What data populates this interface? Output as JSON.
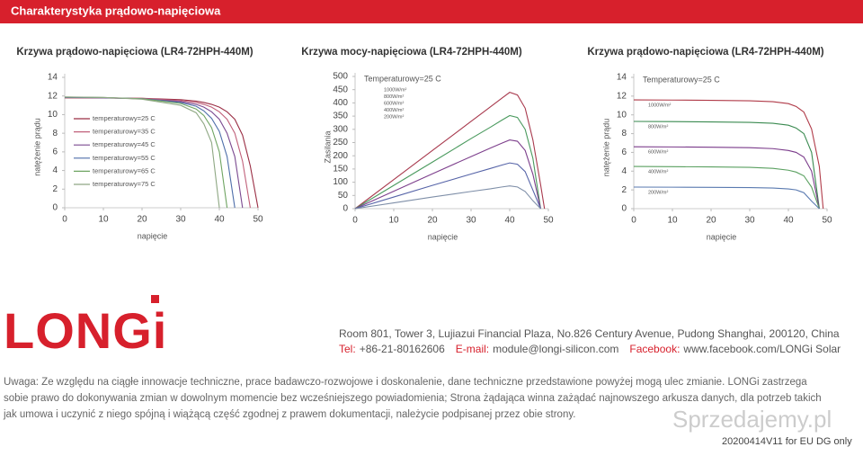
{
  "header": {
    "title": "Charakterystyka prądowo-napięciowa"
  },
  "chart_data": [
    {
      "type": "line",
      "title": "Krzywa prądowo-napięciowa (LR4-72HPH-440M)",
      "x_label": "napięcie",
      "y_label": "natężenie prądu",
      "x": [
        0,
        10,
        20,
        30,
        34,
        36,
        38,
        40,
        42,
        44,
        46,
        48,
        50
      ],
      "xlim": [
        0,
        50
      ],
      "xticks": [
        0,
        10,
        20,
        30,
        40,
        50
      ],
      "ylim": [
        0,
        14
      ],
      "yticks": [
        0,
        2,
        4,
        6,
        8,
        10,
        12,
        14
      ],
      "legend": "left",
      "series": [
        {
          "name": "temperaturowy=25 C",
          "color": "#9b2f45",
          "values": [
            11.8,
            11.78,
            11.75,
            11.6,
            11.45,
            11.3,
            11.1,
            10.8,
            10.3,
            9.5,
            7.8,
            4.5,
            0
          ]
        },
        {
          "name": "temperaturowy=35 C",
          "color": "#c0607a",
          "values": [
            11.82,
            11.8,
            11.75,
            11.5,
            11.3,
            11.1,
            10.8,
            10.3,
            9.5,
            8,
            5,
            0,
            null
          ]
        },
        {
          "name": "temperaturowy=45 C",
          "color": "#7b4a90",
          "values": [
            11.84,
            11.8,
            11.7,
            11.4,
            11.1,
            10.8,
            10.3,
            9.5,
            8,
            5.5,
            0,
            null,
            null
          ]
        },
        {
          "name": "temperaturowy=55 C",
          "color": "#4f6faa",
          "values": [
            11.86,
            11.82,
            11.7,
            11.3,
            10.9,
            10.4,
            9.6,
            8.2,
            5.5,
            0,
            null,
            null,
            null
          ]
        },
        {
          "name": "temperaturowy=65 C",
          "color": "#6fa462",
          "values": [
            11.88,
            11.84,
            11.7,
            11.2,
            10.6,
            9.9,
            8.6,
            6,
            0,
            null,
            null,
            null,
            null
          ]
        },
        {
          "name": "temperaturowy=75 C",
          "color": "#8fa884",
          "values": [
            11.9,
            11.85,
            11.65,
            11,
            10.2,
            9,
            7,
            0,
            null,
            null,
            null,
            null,
            null
          ]
        }
      ]
    },
    {
      "type": "line",
      "title": "Krzywa mocy-napięciowa (LR4-72HPH-440M)",
      "x_label": "napięcie",
      "y_label": "Zasilania",
      "annotation": "Temperaturowy=25 C",
      "x": [
        0,
        10,
        20,
        30,
        35,
        38,
        40,
        42,
        44,
        46,
        48,
        49
      ],
      "xlim": [
        0,
        50
      ],
      "xticks": [
        0,
        10,
        20,
        30,
        40,
        50
      ],
      "ylim": [
        0,
        500
      ],
      "yticks": [
        0,
        50,
        100,
        150,
        200,
        250,
        300,
        350,
        400,
        450,
        500
      ],
      "legend": "upper-left",
      "series": [
        {
          "name": "1000W/m²",
          "color": "#a8394d",
          "values": [
            0,
            110,
            220,
            330,
            385,
            418,
            440,
            430,
            380,
            260,
            90,
            0
          ]
        },
        {
          "name": "800W/m²",
          "color": "#4a9a5e",
          "values": [
            0,
            88,
            176,
            265,
            308,
            335,
            352,
            345,
            300,
            190,
            0,
            null
          ]
        },
        {
          "name": "600W/m²",
          "color": "#7d3f8c",
          "values": [
            0,
            66,
            132,
            197,
            229,
            248,
            260,
            255,
            220,
            130,
            0,
            null
          ]
        },
        {
          "name": "400W/m²",
          "color": "#5664a8",
          "values": [
            0,
            44,
            88,
            131,
            152,
            165,
            173,
            168,
            140,
            70,
            0,
            null
          ]
        },
        {
          "name": "200W/m²",
          "color": "#7f8fa8",
          "values": [
            0,
            22,
            44,
            65,
            75,
            82,
            86,
            82,
            65,
            30,
            0,
            null
          ]
        }
      ]
    },
    {
      "type": "line",
      "title": "Krzywa prądowo-napięciowa (LR4-72HPH-440M)",
      "x_label": "napięcie",
      "y_label": "natężenie prądu",
      "annotation": "Temperaturowy=25 C",
      "x": [
        0,
        10,
        20,
        30,
        36,
        40,
        42,
        44,
        46,
        48,
        49
      ],
      "xlim": [
        0,
        50
      ],
      "xticks": [
        0,
        10,
        20,
        30,
        40,
        50
      ],
      "ylim": [
        0,
        14
      ],
      "yticks": [
        0,
        2,
        4,
        6,
        8,
        10,
        12,
        14
      ],
      "legend": "inline",
      "series": [
        {
          "name": "1000W/m²",
          "color": "#b03a48",
          "values": [
            11.6,
            11.58,
            11.55,
            11.5,
            11.4,
            11.2,
            10.9,
            10.3,
            8.5,
            4.5,
            0
          ]
        },
        {
          "name": "800W/m²",
          "color": "#3a8a50",
          "values": [
            9.3,
            9.28,
            9.25,
            9.2,
            9.1,
            8.9,
            8.6,
            8,
            6,
            0,
            null
          ]
        },
        {
          "name": "600W/m²",
          "color": "#7a3a8a",
          "values": [
            6.6,
            6.58,
            6.55,
            6.5,
            6.4,
            6.2,
            6,
            5.5,
            4,
            0,
            null
          ]
        },
        {
          "name": "400W/m²",
          "color": "#5aa060",
          "values": [
            4.5,
            4.48,
            4.45,
            4.4,
            4.3,
            4.1,
            3.9,
            3.5,
            2.3,
            0,
            null
          ]
        },
        {
          "name": "200W/m²",
          "color": "#5a7ab0",
          "values": [
            2.3,
            2.29,
            2.27,
            2.25,
            2.2,
            2.1,
            2,
            1.7,
            0.8,
            0,
            null
          ]
        }
      ]
    }
  ],
  "company": {
    "logo": "LONGi",
    "address": "Room 801, Tower 3, Lujiazui Financial Plaza, No.826 Century Avenue, Pudong Shanghai, 200120, China",
    "contacts": [
      {
        "label": "Tel:",
        "value": "+86-21-80162606"
      },
      {
        "label": "E-mail:",
        "value": "module@longi-silicon.com"
      },
      {
        "label": "Facebook:",
        "value": "www.facebook.com/LONGi Solar"
      }
    ]
  },
  "disclaimer": [
    "Uwaga: Ze względu na ciągłe innowacje techniczne, prace badawczo-rozwojowe i doskonalenie, dane techniczne przedstawione powyżej mogą ulec zmianie. LONGi zastrzega",
    "sobie prawo do dokonywania zmian w dowolnym momencie bez wcześniejszego powiadomienia; Strona żądająca winna zażądać najnowszego arkusza danych, dla potrzeb takich",
    "jak umowa i uczynić z niego spójną i wiążącą część zgodnej z prawem dokumentacji, należycie podpisanej przez obie strony."
  ],
  "watermark": "Sprzedajemy.pl",
  "version": "20200414V11 for EU DG only"
}
